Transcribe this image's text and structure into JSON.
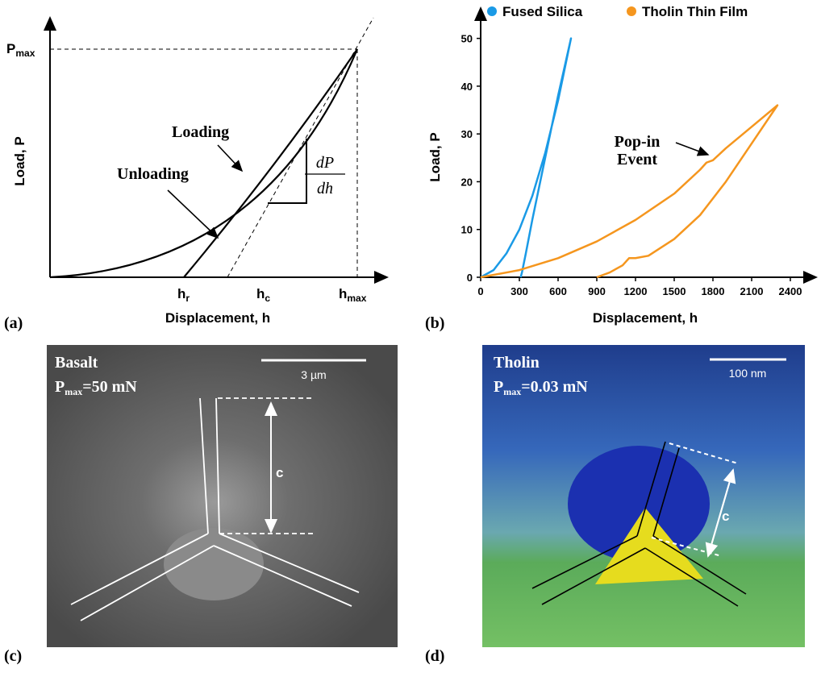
{
  "panel_a": {
    "label": "(a)",
    "y_label": "Load, P",
    "x_label": "Displacement, h",
    "p_max": {
      "base": "P",
      "sub": "max"
    },
    "h_r": {
      "base": "h",
      "sub": "r"
    },
    "h_c": {
      "base": "h",
      "sub": "c"
    },
    "h_max": {
      "base": "h",
      "sub": "max"
    },
    "loading": "Loading",
    "unloading": "Unloading",
    "slope": {
      "numerator": "dP",
      "denominator": "dh"
    }
  },
  "chart_data": {
    "type": "line",
    "panel_label": "(b)",
    "x_label": "Displacement, h",
    "y_label": "Load, P",
    "annotation": [
      "Pop-in",
      "Event"
    ],
    "xlim": [
      0,
      2550
    ],
    "ylim": [
      0,
      55
    ],
    "xticks": [
      0,
      300,
      600,
      900,
      1200,
      1500,
      1800,
      2100,
      2400
    ],
    "yticks": [
      0,
      10,
      20,
      30,
      40,
      50
    ],
    "series": [
      {
        "name": "Fused Silica",
        "color": "#1a9ae6",
        "x": [
          0,
          100,
          200,
          300,
          400,
          500,
          600,
          700,
          600,
          500,
          400,
          350,
          320,
          310
        ],
        "values": [
          0,
          1.5,
          5,
          10,
          17,
          26,
          37,
          50,
          38,
          25,
          12,
          5,
          1,
          0
        ]
      },
      {
        "name": "Tholin Thin Film",
        "color": "#f5961e",
        "x": [
          0,
          300,
          600,
          900,
          1200,
          1500,
          1700,
          1750,
          1800,
          1900,
          2100,
          2300,
          2100,
          1900,
          1700,
          1500,
          1300,
          1200,
          1150,
          1100,
          1000,
          900
        ],
        "values": [
          0,
          1.5,
          4,
          7.5,
          12,
          17.5,
          22.5,
          24,
          24.5,
          27,
          31.5,
          36,
          28,
          20,
          13,
          8,
          4.5,
          4,
          4,
          2.5,
          1,
          0
        ]
      }
    ]
  },
  "panel_c": {
    "label": "(c)",
    "material": "Basalt",
    "p_max": {
      "base": "P",
      "sub": "max",
      "rest": "=50 mN"
    },
    "scale": "3 µm",
    "crack": "c"
  },
  "panel_d": {
    "label": "(d)",
    "material": "Tholin",
    "p_max": {
      "base": "P",
      "sub": "max",
      "rest": "=0.03 mN"
    },
    "scale": "100 nm",
    "crack": "c"
  }
}
